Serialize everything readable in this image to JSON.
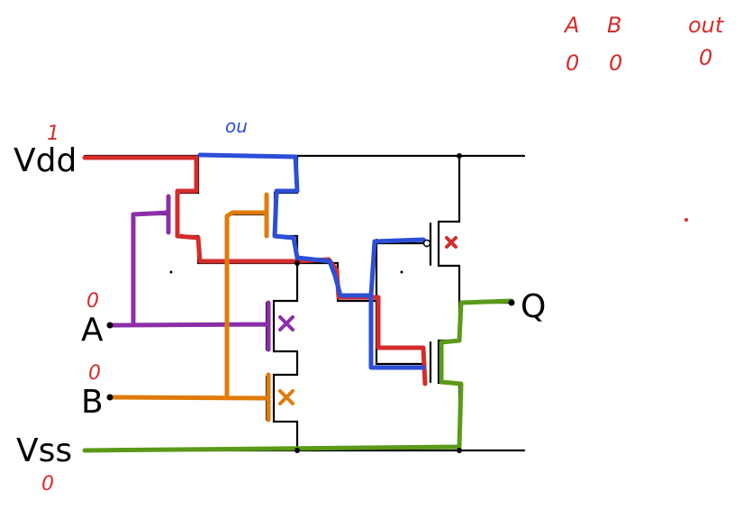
{
  "labels": {
    "vdd": "Vdd",
    "vss": "Vss",
    "a": "A",
    "b": "B",
    "q": "Q"
  },
  "annotations": {
    "vdd_value": "1",
    "vss_value": "0",
    "a_value": "0",
    "b_value": "0",
    "top_wire_note": "ou"
  },
  "truth_table": {
    "headers": [
      "A",
      "B",
      "out"
    ],
    "row": [
      "0",
      "0",
      "0"
    ]
  },
  "colors": {
    "rail": "#000000",
    "vdd_path": "#d42c2c",
    "note_path": "#2d4fd6",
    "input_a": "#8b2fa8",
    "input_b": "#e07b0a",
    "ground_path": "#5a9a18"
  }
}
